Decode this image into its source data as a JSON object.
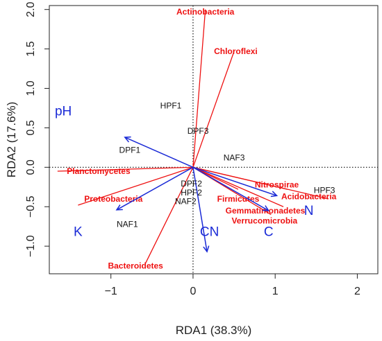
{
  "chart_data": {
    "type": "scatter",
    "xlabel": "RDA1 (38.3%)",
    "ylabel": "RDA2 (17.6%)",
    "xlim": [
      -1.75,
      2.25
    ],
    "ylim": [
      -1.35,
      2.05
    ],
    "xticks": [
      -1,
      0,
      1,
      2
    ],
    "yticks": [
      -1.0,
      -0.5,
      0.0,
      0.5,
      1.0,
      1.5,
      2.0
    ],
    "xtick_labels": [
      "−1",
      "0",
      "1",
      "2"
    ],
    "ytick_labels": [
      "−1.0",
      "−0.5",
      "0.0",
      "0.5",
      "1.0",
      "1.5",
      "2.0"
    ],
    "reference_lines": {
      "x": 0,
      "y": 0,
      "style": "dotted"
    },
    "grid": false,
    "colors": {
      "species": "#ee1111",
      "environment": "#1a2ad6",
      "samples": "#111111"
    },
    "samples": [
      {
        "label": "HPF1",
        "x": -0.27,
        "y": 0.78
      },
      {
        "label": "DPF3",
        "x": 0.06,
        "y": 0.46
      },
      {
        "label": "DPF1",
        "x": -0.77,
        "y": 0.22
      },
      {
        "label": "NAF3",
        "x": 0.5,
        "y": 0.12
      },
      {
        "label": "DPF2",
        "x": -0.02,
        "y": -0.21
      },
      {
        "label": "HPF2",
        "x": -0.02,
        "y": -0.32
      },
      {
        "label": "NAF2",
        "x": -0.09,
        "y": -0.43
      },
      {
        "label": "HPF3",
        "x": 1.6,
        "y": -0.29
      },
      {
        "label": "NAF1",
        "x": -0.8,
        "y": -0.72
      }
    ],
    "species": [
      {
        "label": "Actinobacteria",
        "x": 0.15,
        "y": 2.0,
        "label_x": 0.15,
        "label_y": 1.97
      },
      {
        "label": "Chloroflexi",
        "x": 0.5,
        "y": 1.47,
        "label_x": 0.52,
        "label_y": 1.47
      },
      {
        "label": "Planctomycetes",
        "x": -1.65,
        "y": -0.05,
        "label_x": -1.15,
        "label_y": -0.05
      },
      {
        "label": "Proteobacteria",
        "x": -1.4,
        "y": -0.48,
        "label_x": -0.97,
        "label_y": -0.4
      },
      {
        "label": "Bacteroidetes",
        "x": -0.58,
        "y": -1.22,
        "label_x": -0.7,
        "label_y": -1.25
      },
      {
        "label": "Firmicutes",
        "x": 0.55,
        "y": -0.28,
        "label_x": 0.55,
        "label_y": -0.4
      },
      {
        "label": "Nitrospirae",
        "x": 1.15,
        "y": -0.28,
        "label_x": 1.02,
        "label_y": -0.22
      },
      {
        "label": "Acidobacteria",
        "x": 1.65,
        "y": -0.4,
        "label_x": 1.41,
        "label_y": -0.37
      },
      {
        "label": "Gemmatimonadetes",
        "x": 1.1,
        "y": -0.5,
        "label_x": 0.88,
        "label_y": -0.55
      },
      {
        "label": "Verrucomicrobia",
        "x": 0.95,
        "y": -0.6,
        "label_x": 0.87,
        "label_y": -0.68
      }
    ],
    "environment": [
      {
        "label": "pH",
        "x": -0.83,
        "y": 0.38,
        "label_x": -1.58,
        "label_y": 0.71
      },
      {
        "label": "K",
        "x": -0.93,
        "y": -0.54,
        "label_x": -1.4,
        "label_y": -0.82
      },
      {
        "label": "CN",
        "x": 0.17,
        "y": -1.07,
        "label_x": 0.2,
        "label_y": -0.82
      },
      {
        "label": "C",
        "x": 0.92,
        "y": -0.55,
        "label_x": 0.92,
        "label_y": -0.82
      },
      {
        "label": "N",
        "x": 1.02,
        "y": -0.36,
        "label_x": 1.41,
        "label_y": -0.55
      }
    ]
  }
}
